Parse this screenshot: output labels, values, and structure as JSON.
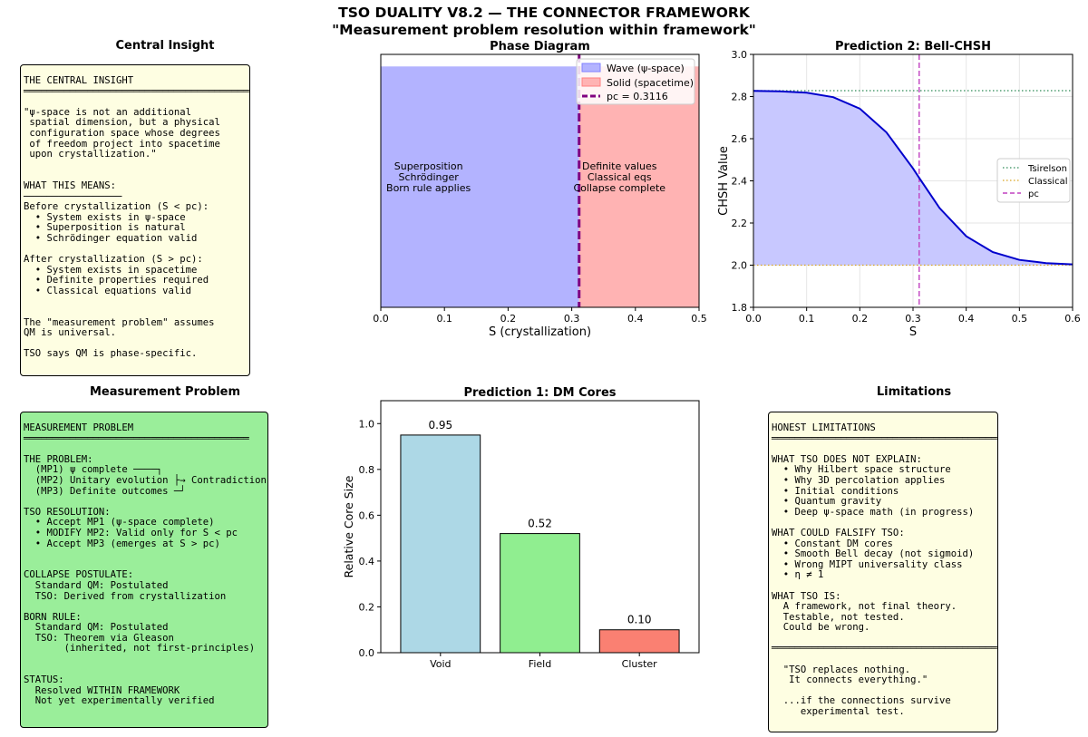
{
  "figure": {
    "title_line1": "TSO DUALITY V8.2 — THE CONNECTOR FRAMEWORK",
    "title_line2": "\"Measurement problem resolution within framework\""
  },
  "panels": {
    "central_insight": {
      "title": "Central Insight",
      "text": "THE CENTRAL INSIGHT\n═══════════════════════════════════════\n\n\"ψ-space is not an additional\n spatial dimension, but a physical\n configuration space whose degrees\n of freedom project into spacetime\n upon crystallization.\"\n\n\nWHAT THIS MEANS:\n─────────────────\nBefore crystallization (S < pc):\n  • System exists in ψ-space\n  • Superposition is natural\n  • Schrödinger equation valid\n\nAfter crystallization (S > pc):\n  • System exists in spacetime\n  • Definite properties required\n  • Classical equations valid\n\n\nThe \"measurement problem\" assumes\nQM is universal.\n\nTSO says QM is phase-specific."
    },
    "measurement_problem": {
      "title": "Measurement Problem",
      "text": "MEASUREMENT PROBLEM\n═══════════════════════════════════════\n\nTHE PROBLEM:\n  (MP1) ψ complete ────┐\n  (MP2) Unitary evolution ├→ Contradiction\n  (MP3) Definite outcomes ─┘\n\nTSO RESOLUTION:\n  • Accept MP1 (ψ-space complete)\n  • MODIFY MP2: Valid only for S < pc\n  • Accept MP3 (emerges at S > pc)\n\n\nCOLLAPSE POSTULATE:\n  Standard QM: Postulated\n  TSO: Derived from crystallization\n\nBORN RULE:\n  Standard QM: Postulated\n  TSO: Theorem via Gleason\n       (inherited, not first-principles)\n\n\nSTATUS:\n  Resolved WITHIN FRAMEWORK\n  Not yet experimentally verified"
    },
    "limitations": {
      "title": "Limitations",
      "text": "HONEST LIMITATIONS\n═══════════════════════════════════════\n\nWHAT TSO DOES NOT EXPLAIN:\n  • Why Hilbert space structure\n  • Why 3D percolation applies\n  • Initial conditions\n  • Quantum gravity\n  • Deep ψ-space math (in progress)\n\nWHAT COULD FALSIFY TSO:\n  • Constant DM cores\n  • Smooth Bell decay (not sigmoid)\n  • Wrong MIPT universality class\n  • η ≠ 1\n\nWHAT TSO IS:\n  A framework, not final theory.\n  Testable, not tested.\n  Could be wrong.\n\n═══════════════════════════════════════\n\n  \"TSO replaces nothing.\n   It connects everything.\"\n\n  ...if the connections survive\n     experimental test."
    }
  },
  "chart_data": [
    {
      "id": "phase",
      "type": "area",
      "title": "Phase Diagram",
      "xlabel": "S (crystallization)",
      "ylabel": "",
      "xlim": [
        0,
        0.5
      ],
      "ylim": [
        0,
        1.05
      ],
      "xticks": [
        0.0,
        0.1,
        0.2,
        0.3,
        0.4,
        0.5
      ],
      "tick_labels": [
        "0.0",
        "0.1",
        "0.2",
        "0.3",
        "0.4",
        "0.5"
      ],
      "pc": 0.3116,
      "regions": [
        {
          "name": "Wave (ψ-space)",
          "x0": 0,
          "x1": 0.3116,
          "y0": 0,
          "y1": 1,
          "color": "#b3b3ff"
        },
        {
          "name": "Solid (spacetime)",
          "x0": 0.3116,
          "x1": 0.5,
          "y0": 0,
          "y1": 1,
          "color": "#ffb3b3"
        }
      ],
      "legend": [
        "Wave (ψ-space)",
        "Solid (spacetime)",
        "pc = 0.3116"
      ],
      "annotations": [
        {
          "lines": [
            "Superposition",
            "Schrödinger",
            "Born rule applies"
          ],
          "x": 0.075,
          "y": 0.55
        },
        {
          "lines": [
            "Definite values",
            "Classical eqs",
            "Collapse complete"
          ],
          "x": 0.375,
          "y": 0.55
        }
      ]
    },
    {
      "id": "bell",
      "type": "line",
      "title": "Prediction 2: Bell-CHSH",
      "xlabel": "S",
      "ylabel": "CHSH Value",
      "xlim": [
        0,
        0.6
      ],
      "ylim": [
        1.8,
        3.0
      ],
      "xticks": [
        0.0,
        0.1,
        0.2,
        0.3,
        0.4,
        0.5,
        0.6
      ],
      "x_tick_labels": [
        "0.0",
        "0.1",
        "0.2",
        "0.3",
        "0.4",
        "0.5",
        "0.6"
      ],
      "yticks": [
        1.8,
        2.0,
        2.2,
        2.4,
        2.6,
        2.8,
        3.0
      ],
      "y_tick_labels": [
        "1.8",
        "2.0",
        "2.2",
        "2.4",
        "2.6",
        "2.8",
        "3.0"
      ],
      "grid": true,
      "x": [
        0.0,
        0.05,
        0.1,
        0.15,
        0.2,
        0.25,
        0.3,
        0.3116,
        0.35,
        0.4,
        0.45,
        0.5,
        0.55,
        0.6
      ],
      "series": [
        {
          "name": "CHSH",
          "values": [
            2.827,
            2.825,
            2.818,
            2.797,
            2.743,
            2.63,
            2.459,
            2.414,
            2.271,
            2.137,
            2.062,
            2.025,
            2.01,
            2.004
          ]
        }
      ],
      "tsirelson": 2.828,
      "classical": 2.0,
      "pc": 0.3116,
      "legend": [
        "Tsirelson",
        "Classical",
        "pc"
      ]
    },
    {
      "id": "dm",
      "type": "bar",
      "title": "Prediction 1: DM Cores",
      "xlabel": "",
      "ylabel": "Relative Core Size",
      "categories": [
        "Void",
        "Field",
        "Cluster"
      ],
      "values": [
        0.95,
        0.52,
        0.1
      ],
      "value_labels": [
        "0.95",
        "0.52",
        "0.10"
      ],
      "colors": [
        "#add8e6",
        "#90ee90",
        "#fa8072"
      ],
      "ylim": [
        0,
        1.1
      ],
      "yticks": [
        0.0,
        0.2,
        0.4,
        0.6,
        0.8,
        1.0
      ],
      "y_tick_labels": [
        "0.0",
        "0.2",
        "0.4",
        "0.6",
        "0.8",
        "1.0"
      ]
    }
  ]
}
